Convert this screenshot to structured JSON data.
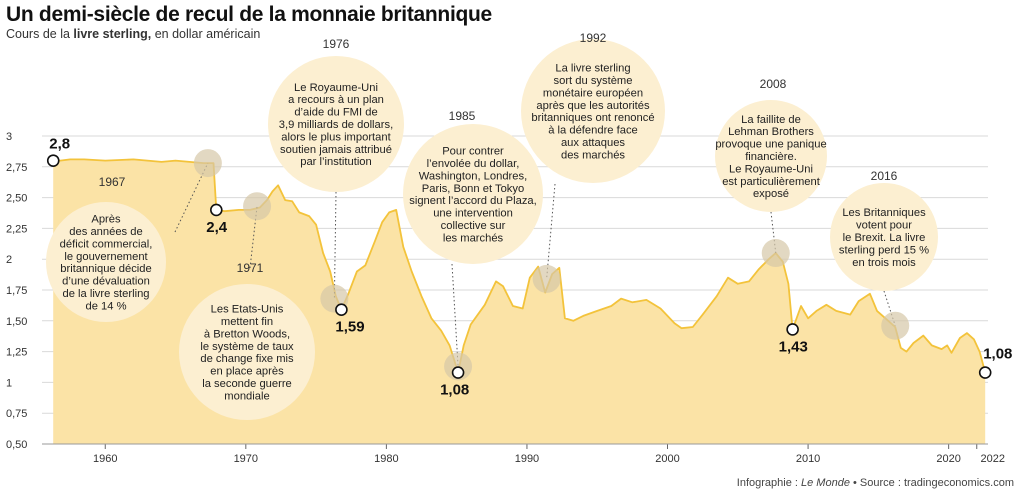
{
  "title": "Un demi-siècle de recul de la monnaie britannique",
  "subtitle_pre": "Cours de la ",
  "subtitle_bold": "livre sterling,",
  "subtitle_post": " en dollar américain",
  "credit_pre": "Infographie : ",
  "credit_italic": "Le Monde",
  "credit_post": " • Source : tradingeconomics.com",
  "colors": {
    "area": "#fbe3a6",
    "line": "#f3c33b",
    "bubble": "#fcefd1",
    "grid": "#d9d9d9",
    "marker": "#d6c7a8"
  },
  "chart_data": {
    "type": "area",
    "xlim": [
      1955.5,
      2022.8
    ],
    "ylim": [
      0.5,
      3
    ],
    "y_ticks": [
      0.5,
      0.75,
      1,
      1.25,
      1.5,
      1.75,
      2,
      2.25,
      2.5,
      2.75,
      3
    ],
    "y_tick_labels": [
      "0,50",
      "0,75",
      "1",
      "1,25",
      "1,50",
      "1,75",
      "2",
      "2,25",
      "2,50",
      "2,75",
      "3"
    ],
    "x_ticks": [
      1960,
      1970,
      1980,
      1990,
      2000,
      2010,
      2020,
      2022
    ],
    "x_tick_labels": [
      "1960",
      "1970",
      "1980",
      "1990",
      "2000",
      "2010",
      "2020",
      "2022"
    ],
    "grid": true,
    "series": [
      {
        "x": [
          1956.3,
          1956.8,
          1957.5,
          1958.5,
          1960,
          1962,
          1964,
          1965,
          1966,
          1967,
          1967.7,
          1967.9,
          1968.5,
          1969.5,
          1970.3,
          1971,
          1971.5,
          1971.9,
          1972.3,
          1972.8,
          1973.3,
          1973.8,
          1974.5,
          1975,
          1975.5,
          1976,
          1976.4,
          1976.8,
          1977.3,
          1977.9,
          1978.5,
          1979.2,
          1979.7,
          1980.2,
          1980.7,
          1981.2,
          1981.8,
          1982.5,
          1983.2,
          1983.9,
          1984.5,
          1985.1,
          1985.5,
          1986,
          1987,
          1987.8,
          1988.3,
          1989,
          1989.7,
          1990.2,
          1990.8,
          1991.3,
          1991.8,
          1992.3,
          1992.7,
          1993.3,
          1994,
          1995,
          1996,
          1996.7,
          1997.5,
          1998.5,
          1999.5,
          2000.5,
          2001,
          2001.8,
          2002.5,
          2003.5,
          2004.3,
          2005,
          2005.8,
          2006.5,
          2007.2,
          2007.7,
          2008.2,
          2008.6,
          2008.9,
          2009.5,
          2010,
          2010.6,
          2011.3,
          2012,
          2013,
          2013.6,
          2014.4,
          2014.9,
          2015.5,
          2016.2,
          2016.6,
          2017,
          2017.5,
          2018.2,
          2018.8,
          2019.5,
          2019.9,
          2020.2,
          2020.8,
          2021.3,
          2021.8,
          2022.2,
          2022.6
        ],
        "y": [
          2.8,
          2.8,
          2.81,
          2.81,
          2.8,
          2.81,
          2.79,
          2.8,
          2.79,
          2.78,
          2.78,
          2.4,
          2.39,
          2.4,
          2.4,
          2.42,
          2.48,
          2.55,
          2.6,
          2.48,
          2.47,
          2.38,
          2.35,
          2.28,
          2.05,
          1.9,
          1.7,
          1.59,
          1.72,
          1.9,
          1.95,
          2.15,
          2.3,
          2.38,
          2.4,
          2.1,
          1.9,
          1.7,
          1.52,
          1.42,
          1.3,
          1.08,
          1.3,
          1.47,
          1.63,
          1.82,
          1.78,
          1.62,
          1.6,
          1.85,
          1.94,
          1.73,
          1.88,
          1.93,
          1.52,
          1.5,
          1.54,
          1.58,
          1.62,
          1.68,
          1.65,
          1.67,
          1.6,
          1.48,
          1.44,
          1.45,
          1.55,
          1.7,
          1.85,
          1.8,
          1.82,
          1.92,
          2.0,
          2.05,
          1.98,
          1.8,
          1.43,
          1.62,
          1.52,
          1.58,
          1.63,
          1.58,
          1.55,
          1.66,
          1.72,
          1.58,
          1.52,
          1.45,
          1.28,
          1.25,
          1.32,
          1.38,
          1.3,
          1.27,
          1.3,
          1.24,
          1.36,
          1.4,
          1.35,
          1.25,
          1.08
        ]
      }
    ],
    "value_labels": [
      {
        "text": "2,8",
        "x": 1956.3,
        "y": 2.8
      },
      {
        "text": "2,4",
        "x": 1967.9,
        "y": 2.4
      },
      {
        "text": "1,59",
        "x": 1976.8,
        "y": 1.59
      },
      {
        "text": "1,08",
        "x": 1985.1,
        "y": 1.08
      },
      {
        "text": "1,43",
        "x": 2008.9,
        "y": 1.43
      },
      {
        "text": "1,08",
        "x": 2022.6,
        "y": 1.08
      }
    ],
    "annotations": [
      {
        "year": "1967",
        "lines": [
          "Après",
          "des années de",
          "déficit commercial,",
          "le gouvernement",
          "britannique décide",
          "d’une dévaluation",
          "de la livre sterling",
          "de 14 %"
        ],
        "x": 1967.3,
        "y": 2.78
      },
      {
        "year": "1971",
        "lines": [
          "Les Etats-Unis",
          "mettent fin",
          "à Bretton Woods,",
          "le système de taux",
          "de change fixe mis",
          "en place après",
          "la seconde guerre",
          "mondiale"
        ],
        "x": 1970.8,
        "y": 2.43
      },
      {
        "year": "1976",
        "lines": [
          "Le Royaume-Uni",
          "a recours à un plan",
          "d’aide du FMI de",
          "3,9 milliards de dollars,",
          "alors le plus important",
          "soutien jamais attribué",
          "par l’institution"
        ],
        "x": 1976.3,
        "y": 1.68
      },
      {
        "year": "1985",
        "lines": [
          "Pour contrer",
          "l’envolée du dollar,",
          "Washington, Londres,",
          "Paris, Bonn et Tokyo",
          "signent l’accord du Plaza,",
          "une intervention",
          "collective sur",
          "les marchés"
        ],
        "x": 1985.1,
        "y": 1.13
      },
      {
        "year": "1992",
        "lines": [
          "La livre sterling",
          "sort du système",
          "monétaire européen",
          "après que les autorités",
          "britanniques ont renoncé",
          "à la défendre face",
          "aux attaques",
          "des marchés"
        ],
        "x": 1991.4,
        "y": 1.84
      },
      {
        "year": "2008",
        "lines": [
          "La faillite de",
          "Lehman Brothers",
          "provoque une panique",
          "financière.",
          "Le Royaume-Uni",
          "est particulièrement",
          "exposé"
        ],
        "x": 2007.7,
        "y": 2.05
      },
      {
        "year": "2016",
        "lines": [
          "Les Britanniques",
          "votent pour",
          "le Brexit. La livre",
          "sterling perd 15 %",
          "en trois mois"
        ],
        "x": 2016.2,
        "y": 1.46
      }
    ]
  }
}
